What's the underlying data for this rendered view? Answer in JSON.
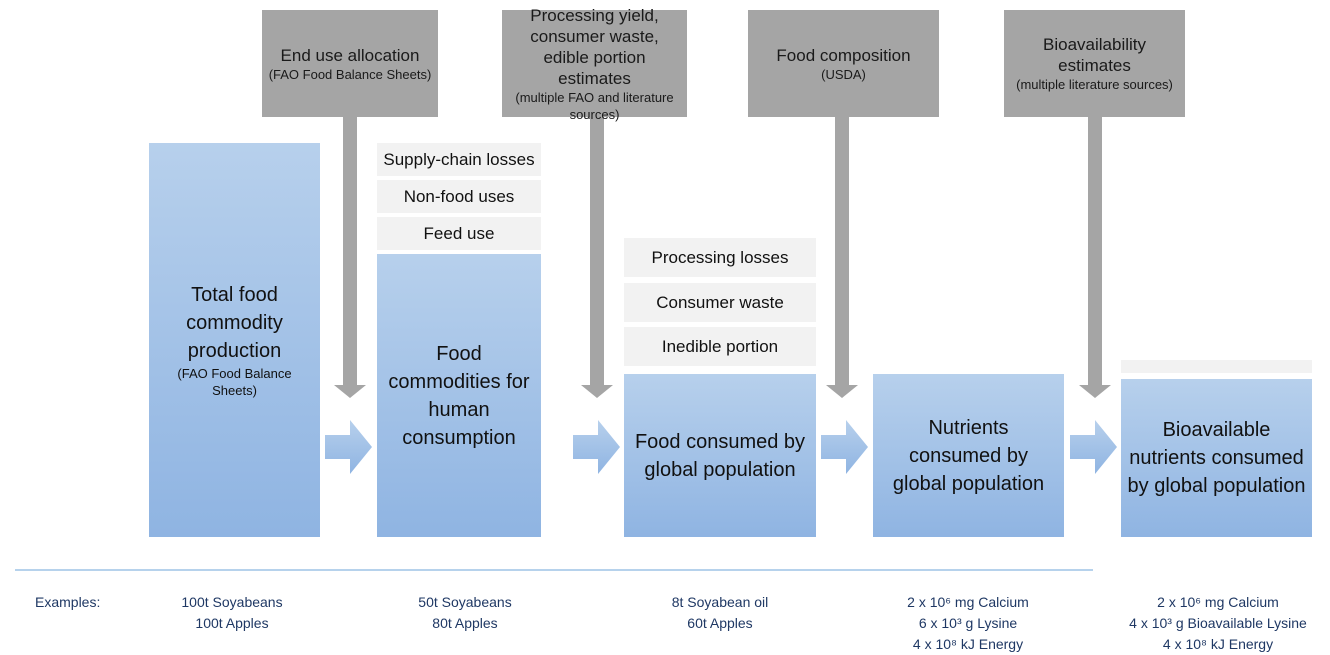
{
  "sources": [
    {
      "title": "End use allocation",
      "subtitle": "(FAO Food Balance Sheets)"
    },
    {
      "title": "Processing yield, consumer waste, edible portion estimates",
      "subtitle": "(multiple FAO and literature sources)"
    },
    {
      "title": "Food composition",
      "subtitle": "(USDA)"
    },
    {
      "title": "Bioavailability estimates",
      "subtitle": "(multiple literature sources)"
    }
  ],
  "stages": [
    {
      "label": "Total food commodity production",
      "note": "(FAO Food Balance Sheets)",
      "losses": []
    },
    {
      "label": "Food commodities for human consumption",
      "losses": [
        "Supply-chain losses",
        "Non-food uses",
        "Feed use"
      ]
    },
    {
      "label": "Food consumed by global population",
      "losses": [
        "Processing losses",
        "Consumer waste",
        "Inedible portion"
      ]
    },
    {
      "label": "Nutrients consumed by global population",
      "losses": []
    },
    {
      "label": "Bioavailable nutrients consumed by global population",
      "losses": []
    }
  ],
  "examples": {
    "label": "Examples:",
    "items": [
      [
        "100t Soyabeans",
        "100t Apples"
      ],
      [
        "50t Soyabeans",
        "80t Apples"
      ],
      [
        "8t Soyabean oil",
        "60t Apples"
      ],
      [
        "2 x 10⁶ mg Calcium",
        "6 x 10³ g Lysine",
        "4 x 10⁸ kJ Energy"
      ],
      [
        "2 x 10⁶ mg Calcium",
        "4 x 10³ g Bioavailable Lysine",
        "4 x 10⁸ kJ Energy"
      ]
    ]
  }
}
